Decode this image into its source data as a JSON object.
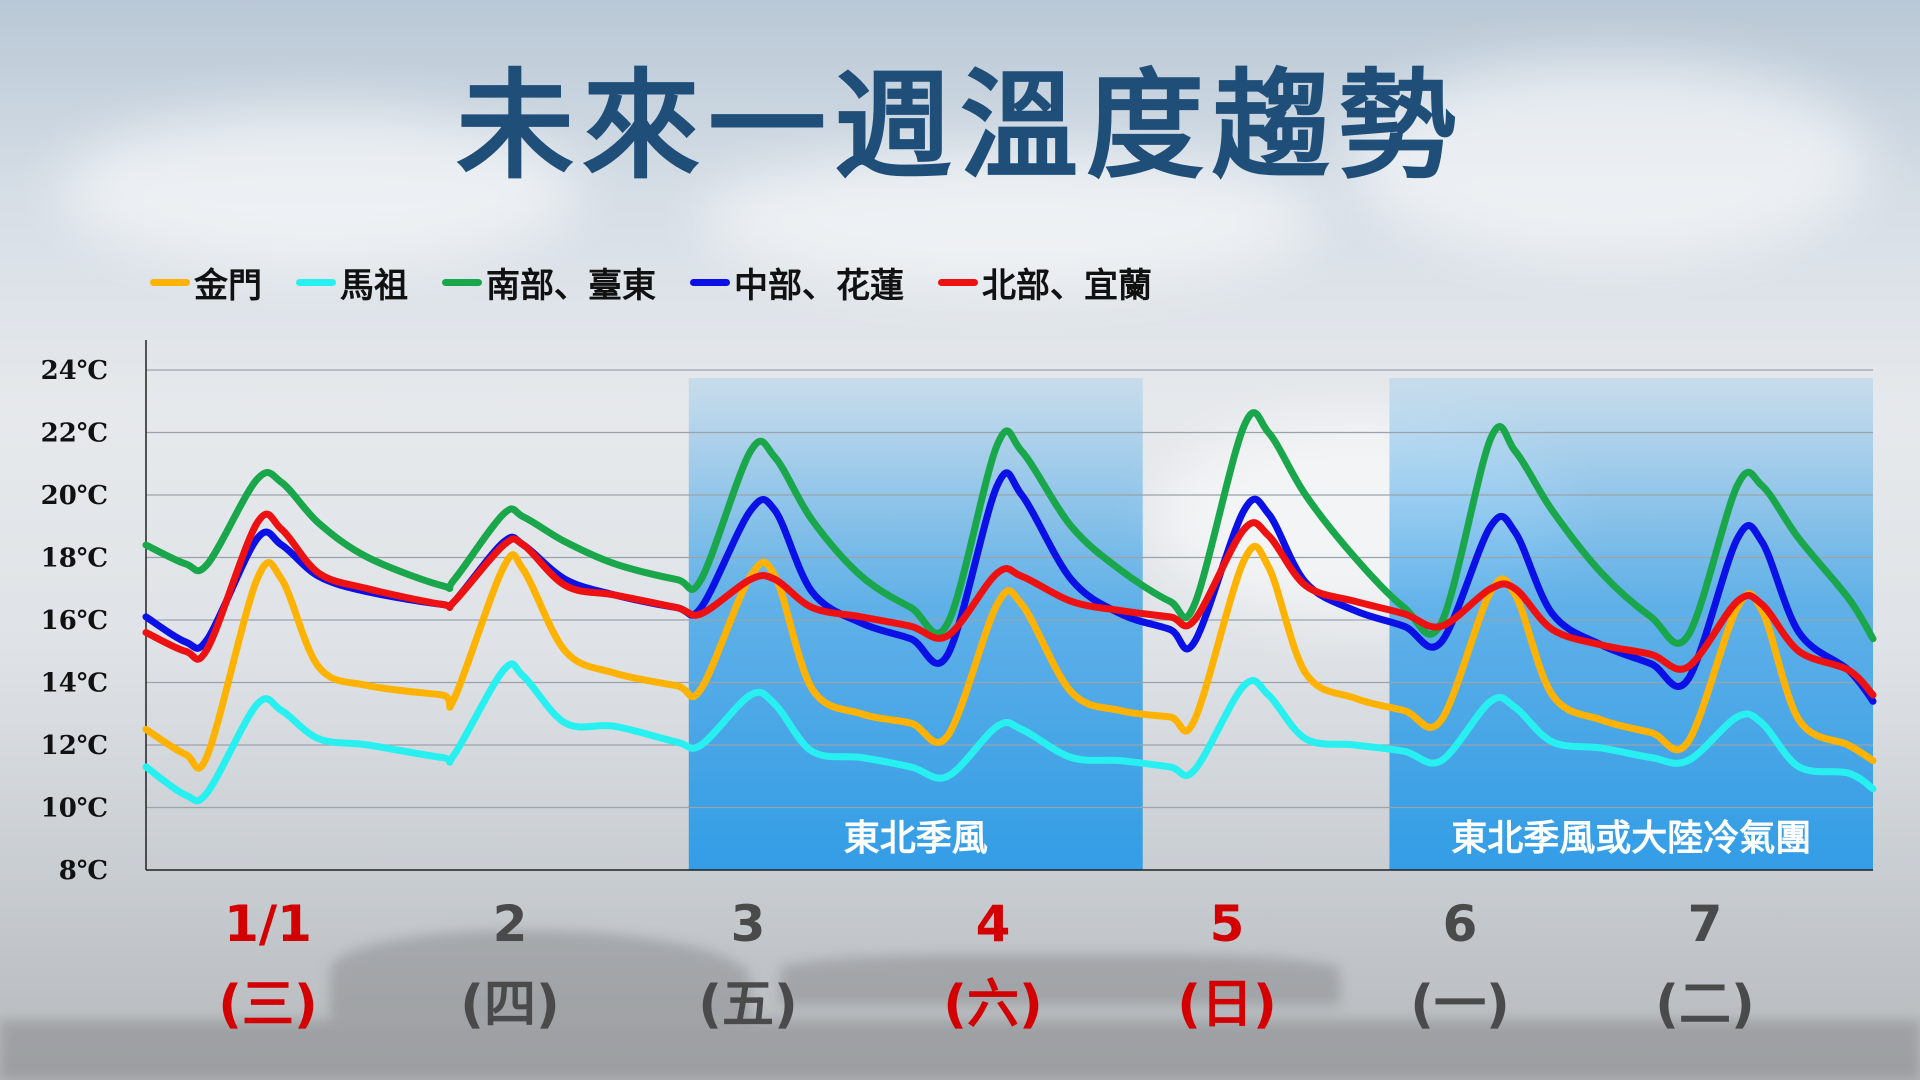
{
  "title": "未來一週溫度趨勢",
  "colors": {
    "jinmen": "#ffb300",
    "mazu": "#29f0f0",
    "south": "#1aa64a",
    "central": "#0a10e6",
    "north": "#ee1111",
    "band": "#2b9be8",
    "holiday": "#d20000"
  },
  "days": [
    {
      "date": "1/1",
      "weekday": "(三)",
      "holiday": true
    },
    {
      "date": "2",
      "weekday": "(四)",
      "holiday": false
    },
    {
      "date": "3",
      "weekday": "(五)",
      "holiday": false
    },
    {
      "date": "4",
      "weekday": "(六)",
      "holiday": true
    },
    {
      "date": "5",
      "weekday": "(日)",
      "holiday": true
    },
    {
      "date": "6",
      "weekday": "(一)",
      "holiday": false
    },
    {
      "date": "7",
      "weekday": "(二)",
      "holiday": false
    }
  ],
  "chart_data": {
    "type": "line",
    "title": "未來一週溫度趨勢",
    "ylim": [
      8,
      24
    ],
    "y_ticks": [
      "8℃",
      "10℃",
      "12℃",
      "14℃",
      "16℃",
      "18℃",
      "20℃",
      "22℃",
      "24℃"
    ],
    "y_tick_values": [
      8,
      10,
      12,
      14,
      16,
      18,
      20,
      22,
      24
    ],
    "x_unit": "day (0 = start of 1/1)",
    "xlim": [
      0,
      7
    ],
    "grid": true,
    "legend_position": "top-left",
    "annotations": [
      {
        "text": "東北季風",
        "x_start": 2.2,
        "x_end": 4.04
      },
      {
        "text": "東北季風或大陸冷氣團",
        "x_start": 5.04,
        "x_end": 7
      }
    ],
    "series": [
      {
        "name": "金門",
        "color_key": "jinmen",
        "points": [
          [
            0,
            12.5
          ],
          [
            0.16,
            11.7
          ],
          [
            0.25,
            11.7
          ],
          [
            0.45,
            17.3
          ],
          [
            0.55,
            17.3
          ],
          [
            0.7,
            14.5
          ],
          [
            0.9,
            13.9
          ],
          [
            1.2,
            13.6
          ],
          [
            1.25,
            13.5
          ],
          [
            1.45,
            17.7
          ],
          [
            1.53,
            17.6
          ],
          [
            1.7,
            15.0
          ],
          [
            1.9,
            14.3
          ],
          [
            2.15,
            13.9
          ],
          [
            2.25,
            13.8
          ],
          [
            2.45,
            17.4
          ],
          [
            2.55,
            17.4
          ],
          [
            2.7,
            13.8
          ],
          [
            2.9,
            13.0
          ],
          [
            3.1,
            12.7
          ],
          [
            3.25,
            12.3
          ],
          [
            3.45,
            16.5
          ],
          [
            3.55,
            16.5
          ],
          [
            3.75,
            13.7
          ],
          [
            3.95,
            13.1
          ],
          [
            4.15,
            12.9
          ],
          [
            4.25,
            12.8
          ],
          [
            4.45,
            17.9
          ],
          [
            4.55,
            17.7
          ],
          [
            4.7,
            14.3
          ],
          [
            4.9,
            13.5
          ],
          [
            5.1,
            13.1
          ],
          [
            5.25,
            12.8
          ],
          [
            5.45,
            16.9
          ],
          [
            5.55,
            16.8
          ],
          [
            5.7,
            13.6
          ],
          [
            5.9,
            12.8
          ],
          [
            6.1,
            12.4
          ],
          [
            6.25,
            12.1
          ],
          [
            6.45,
            16.4
          ],
          [
            6.55,
            16.3
          ],
          [
            6.7,
            12.8
          ],
          [
            6.9,
            12.0
          ],
          [
            7,
            11.5
          ]
        ]
      },
      {
        "name": "馬祖",
        "color_key": "mazu",
        "points": [
          [
            0,
            11.3
          ],
          [
            0.16,
            10.4
          ],
          [
            0.25,
            10.5
          ],
          [
            0.45,
            13.3
          ],
          [
            0.55,
            13.1
          ],
          [
            0.7,
            12.2
          ],
          [
            0.9,
            12.0
          ],
          [
            1.2,
            11.6
          ],
          [
            1.25,
            11.7
          ],
          [
            1.45,
            14.4
          ],
          [
            1.53,
            14.2
          ],
          [
            1.7,
            12.7
          ],
          [
            1.9,
            12.6
          ],
          [
            2.15,
            12.1
          ],
          [
            2.25,
            12.0
          ],
          [
            2.45,
            13.6
          ],
          [
            2.55,
            13.3
          ],
          [
            2.7,
            11.8
          ],
          [
            2.9,
            11.6
          ],
          [
            3.1,
            11.3
          ],
          [
            3.25,
            11.0
          ],
          [
            3.45,
            12.6
          ],
          [
            3.55,
            12.5
          ],
          [
            3.75,
            11.6
          ],
          [
            3.95,
            11.5
          ],
          [
            4.15,
            11.3
          ],
          [
            4.25,
            11.2
          ],
          [
            4.45,
            13.9
          ],
          [
            4.55,
            13.6
          ],
          [
            4.7,
            12.2
          ],
          [
            4.9,
            12.0
          ],
          [
            5.1,
            11.8
          ],
          [
            5.25,
            11.5
          ],
          [
            5.45,
            13.4
          ],
          [
            5.55,
            13.2
          ],
          [
            5.7,
            12.1
          ],
          [
            5.9,
            11.9
          ],
          [
            6.1,
            11.6
          ],
          [
            6.25,
            11.5
          ],
          [
            6.45,
            12.9
          ],
          [
            6.55,
            12.7
          ],
          [
            6.7,
            11.3
          ],
          [
            6.9,
            11.1
          ],
          [
            7,
            10.6
          ]
        ]
      },
      {
        "name": "南部、臺東",
        "color_key": "south",
        "points": [
          [
            0,
            18.4
          ],
          [
            0.16,
            17.8
          ],
          [
            0.25,
            17.8
          ],
          [
            0.45,
            20.5
          ],
          [
            0.55,
            20.4
          ],
          [
            0.7,
            19.1
          ],
          [
            0.9,
            18.0
          ],
          [
            1.2,
            17.1
          ],
          [
            1.25,
            17.3
          ],
          [
            1.45,
            19.4
          ],
          [
            1.53,
            19.3
          ],
          [
            1.7,
            18.5
          ],
          [
            1.9,
            17.8
          ],
          [
            2.15,
            17.3
          ],
          [
            2.25,
            17.3
          ],
          [
            2.45,
            21.4
          ],
          [
            2.55,
            21.2
          ],
          [
            2.7,
            19.2
          ],
          [
            2.9,
            17.4
          ],
          [
            3.1,
            16.4
          ],
          [
            3.25,
            15.9
          ],
          [
            3.45,
            21.6
          ],
          [
            3.55,
            21.4
          ],
          [
            3.75,
            19.0
          ],
          [
            3.95,
            17.6
          ],
          [
            4.15,
            16.6
          ],
          [
            4.25,
            16.5
          ],
          [
            4.45,
            22.2
          ],
          [
            4.55,
            22.0
          ],
          [
            4.7,
            20.0
          ],
          [
            4.9,
            18.0
          ],
          [
            5.1,
            16.4
          ],
          [
            5.25,
            15.9
          ],
          [
            5.45,
            21.8
          ],
          [
            5.55,
            21.4
          ],
          [
            5.7,
            19.5
          ],
          [
            5.9,
            17.5
          ],
          [
            6.1,
            16.1
          ],
          [
            6.25,
            15.5
          ],
          [
            6.45,
            20.3
          ],
          [
            6.55,
            20.3
          ],
          [
            6.7,
            18.6
          ],
          [
            6.9,
            16.7
          ],
          [
            7,
            15.4
          ]
        ]
      },
      {
        "name": "中部、花蓮",
        "color_key": "central",
        "points": [
          [
            0,
            16.1
          ],
          [
            0.16,
            15.3
          ],
          [
            0.25,
            15.4
          ],
          [
            0.45,
            18.6
          ],
          [
            0.55,
            18.4
          ],
          [
            0.7,
            17.4
          ],
          [
            0.9,
            16.9
          ],
          [
            1.2,
            16.5
          ],
          [
            1.25,
            16.6
          ],
          [
            1.45,
            18.5
          ],
          [
            1.53,
            18.4
          ],
          [
            1.7,
            17.3
          ],
          [
            1.9,
            16.8
          ],
          [
            2.15,
            16.4
          ],
          [
            2.25,
            16.4
          ],
          [
            2.45,
            19.5
          ],
          [
            2.55,
            19.5
          ],
          [
            2.7,
            16.9
          ],
          [
            2.9,
            15.9
          ],
          [
            3.1,
            15.4
          ],
          [
            3.25,
            14.9
          ],
          [
            3.45,
            20.3
          ],
          [
            3.55,
            20.0
          ],
          [
            3.75,
            17.3
          ],
          [
            3.95,
            16.2
          ],
          [
            4.15,
            15.7
          ],
          [
            4.25,
            15.3
          ],
          [
            4.45,
            19.5
          ],
          [
            4.55,
            19.4
          ],
          [
            4.7,
            17.2
          ],
          [
            4.9,
            16.3
          ],
          [
            5.1,
            15.8
          ],
          [
            5.25,
            15.3
          ],
          [
            5.45,
            19.0
          ],
          [
            5.55,
            18.8
          ],
          [
            5.7,
            16.2
          ],
          [
            5.9,
            15.2
          ],
          [
            6.1,
            14.6
          ],
          [
            6.25,
            14.1
          ],
          [
            6.45,
            18.6
          ],
          [
            6.55,
            18.5
          ],
          [
            6.7,
            15.6
          ],
          [
            6.9,
            14.4
          ],
          [
            7,
            13.4
          ]
        ]
      },
      {
        "name": "北部、宜蘭",
        "color_key": "north",
        "points": [
          [
            0,
            15.6
          ],
          [
            0.16,
            15.0
          ],
          [
            0.25,
            15.1
          ],
          [
            0.45,
            19.1
          ],
          [
            0.55,
            18.9
          ],
          [
            0.7,
            17.5
          ],
          [
            0.9,
            17.0
          ],
          [
            1.2,
            16.5
          ],
          [
            1.25,
            16.6
          ],
          [
            1.45,
            18.4
          ],
          [
            1.53,
            18.4
          ],
          [
            1.7,
            17.1
          ],
          [
            1.9,
            16.8
          ],
          [
            2.15,
            16.4
          ],
          [
            2.25,
            16.2
          ],
          [
            2.45,
            17.3
          ],
          [
            2.55,
            17.3
          ],
          [
            2.7,
            16.4
          ],
          [
            2.9,
            16.1
          ],
          [
            3.1,
            15.8
          ],
          [
            3.25,
            15.5
          ],
          [
            3.45,
            17.5
          ],
          [
            3.55,
            17.4
          ],
          [
            3.75,
            16.6
          ],
          [
            3.95,
            16.3
          ],
          [
            4.15,
            16.1
          ],
          [
            4.25,
            16.0
          ],
          [
            4.45,
            18.9
          ],
          [
            4.55,
            18.7
          ],
          [
            4.7,
            17.1
          ],
          [
            4.9,
            16.6
          ],
          [
            5.1,
            16.2
          ],
          [
            5.25,
            15.8
          ],
          [
            5.45,
            17.0
          ],
          [
            5.55,
            17.0
          ],
          [
            5.7,
            15.7
          ],
          [
            5.9,
            15.2
          ],
          [
            6.1,
            14.9
          ],
          [
            6.25,
            14.5
          ],
          [
            6.45,
            16.6
          ],
          [
            6.55,
            16.5
          ],
          [
            6.7,
            15.0
          ],
          [
            6.9,
            14.4
          ],
          [
            7,
            13.6
          ]
        ]
      }
    ]
  }
}
